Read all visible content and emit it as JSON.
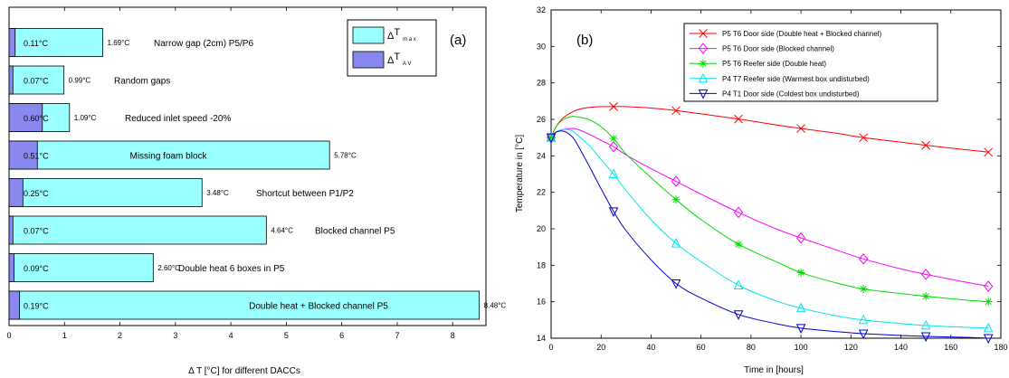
{
  "chart_data": [
    {
      "type": "bar",
      "orientation": "horizontal",
      "panel_label": "(a)",
      "xlabel": "Δ T [°C] for different DACCs",
      "xlim": [
        0,
        8.6
      ],
      "xticks": [
        0,
        1,
        2,
        3,
        4,
        5,
        6,
        7,
        8
      ],
      "legend_placement": "top-right",
      "series": [
        {
          "name": "ΔT max",
          "color": "#99ffff"
        },
        {
          "name": "ΔT AV",
          "color": "#8888ee"
        }
      ],
      "bars": [
        {
          "category": "Narrow gap (2cm) P5/P6",
          "max": 1.69,
          "av": 0.11,
          "max_label": "1.69°C",
          "av_label": "0.11°C"
        },
        {
          "category": "Random gaps",
          "max": 0.99,
          "av": 0.07,
          "max_label": "0.99°C",
          "av_label": "0.07°C"
        },
        {
          "category": "Reduced inlet speed -20%",
          "max": 1.09,
          "av": 0.6,
          "max_label": "1.09°C",
          "av_label": "0.60°C"
        },
        {
          "category": "Missing foam block",
          "max": 5.78,
          "av": 0.51,
          "max_label": "5.78°C",
          "av_label": "0.51°C"
        },
        {
          "category": "Shortcut between P1/P2",
          "max": 3.48,
          "av": 0.25,
          "max_label": "3.48°C",
          "av_label": "0.25°C"
        },
        {
          "category": "Blocked channel P5",
          "max": 4.64,
          "av": 0.07,
          "max_label": "4.64°C",
          "av_label": "0.07°C"
        },
        {
          "category": "Double heat 6 boxes in P5",
          "max": 2.6,
          "av": 0.09,
          "max_label": "2.60°C",
          "av_label": "0.09°C"
        },
        {
          "category": "Double heat + Blocked channel P5",
          "max": 8.48,
          "av": 0.19,
          "max_label": "8.48°C",
          "av_label": "0.19°C"
        }
      ]
    },
    {
      "type": "line",
      "panel_label": "(b)",
      "xlabel": "Time in [hours]",
      "ylabel": "Temperature in [°C]",
      "xlim": [
        0,
        180
      ],
      "ylim": [
        14,
        32
      ],
      "xticks": [
        0,
        20,
        40,
        60,
        80,
        100,
        120,
        140,
        160,
        180
      ],
      "yticks": [
        14,
        16,
        18,
        20,
        22,
        24,
        26,
        28,
        30,
        32
      ],
      "legend_placement": "top-right",
      "series": [
        {
          "name": "P5 T6 Door side (Double heat + Blocked channel)",
          "color": "#ff0000",
          "marker": "x",
          "x": [
            0,
            2,
            5,
            10,
            15,
            20,
            25,
            30,
            40,
            50,
            60,
            75,
            90,
            100,
            115,
            125,
            140,
            150,
            165,
            175
          ],
          "y": [
            25.0,
            25.6,
            26.1,
            26.5,
            26.65,
            26.7,
            26.7,
            26.7,
            26.62,
            26.48,
            26.3,
            26.02,
            25.7,
            25.5,
            25.22,
            25.0,
            24.75,
            24.58,
            24.35,
            24.2
          ],
          "marker_x": [
            25,
            50,
            75,
            100,
            125,
            150,
            175
          ]
        },
        {
          "name": "P5 T6 Door side (Blocked channel)",
          "color": "#ff00ff",
          "marker": "diamond",
          "x": [
            0,
            2,
            5,
            8,
            10,
            15,
            20,
            25,
            30,
            40,
            50,
            60,
            75,
            90,
            100,
            115,
            125,
            140,
            150,
            165,
            175
          ],
          "y": [
            25.0,
            25.3,
            25.45,
            25.5,
            25.48,
            25.2,
            24.85,
            24.5,
            24.05,
            23.3,
            22.6,
            21.9,
            20.9,
            20.0,
            19.5,
            18.8,
            18.35,
            17.8,
            17.5,
            17.1,
            16.85
          ],
          "marker_x": [
            25,
            50,
            75,
            100,
            125,
            150,
            175
          ]
        },
        {
          "name": "P5 T6 Reefer side (Double heat)",
          "color": "#00dd00",
          "marker": "asterisk",
          "x": [
            0,
            2,
            5,
            8,
            10,
            15,
            20,
            25,
            30,
            40,
            50,
            60,
            75,
            90,
            100,
            115,
            125,
            140,
            150,
            165,
            175
          ],
          "y": [
            25.0,
            25.6,
            26.0,
            26.15,
            26.15,
            26.0,
            25.6,
            24.95,
            24.1,
            22.8,
            21.6,
            20.5,
            19.15,
            18.2,
            17.6,
            17.0,
            16.7,
            16.45,
            16.3,
            16.1,
            16.0
          ],
          "marker_x": [
            25,
            50,
            75,
            100,
            125,
            150,
            175
          ]
        },
        {
          "name": "P4 T7 Reefer side (Warmest box undisturbed)",
          "color": "#00e5ee",
          "marker": "triangle-up",
          "x": [
            0,
            2,
            5,
            8,
            10,
            15,
            20,
            25,
            30,
            40,
            50,
            60,
            75,
            90,
            100,
            115,
            125,
            140,
            150,
            165,
            175
          ],
          "y": [
            25.0,
            25.3,
            25.45,
            25.4,
            25.2,
            24.6,
            23.8,
            23.0,
            22.1,
            20.5,
            19.2,
            18.2,
            16.9,
            16.05,
            15.65,
            15.2,
            15.0,
            14.8,
            14.7,
            14.6,
            14.55
          ],
          "marker_x": [
            25,
            50,
            75,
            100,
            125,
            150,
            175
          ]
        },
        {
          "name": "P4 T1 Door side (Coldest box undisturbed)",
          "color": "#0000cc",
          "marker": "triangle-down",
          "x": [
            0,
            2,
            5,
            8,
            10,
            15,
            20,
            25,
            30,
            40,
            50,
            60,
            75,
            90,
            100,
            115,
            125,
            140,
            150,
            165,
            175
          ],
          "y": [
            25.0,
            25.3,
            25.35,
            25.1,
            24.75,
            23.5,
            22.2,
            20.95,
            19.9,
            18.3,
            17.0,
            16.2,
            15.3,
            14.8,
            14.55,
            14.35,
            14.25,
            14.15,
            14.1,
            14.05,
            14.0
          ],
          "marker_x": [
            25,
            50,
            75,
            100,
            125,
            150,
            175
          ]
        }
      ]
    }
  ]
}
